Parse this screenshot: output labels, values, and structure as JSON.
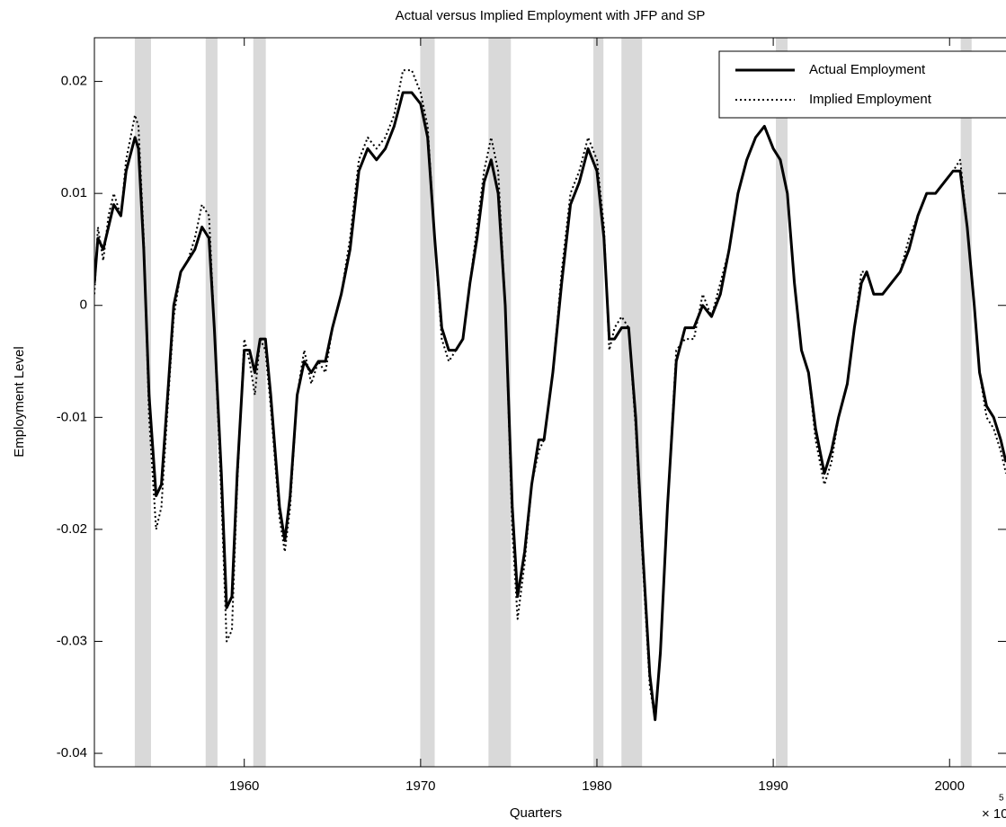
{
  "chart_data": {
    "type": "line",
    "title": "Actual versus Implied Employment with JFP and SP",
    "x_label": "Quarters",
    "y_label": "Employment Level",
    "x_multiplier": "× 10",
    "x_exponent": "5",
    "xlim": [
      1951.5,
      2003.2
    ],
    "ylim": [
      -0.0412,
      0.0239
    ],
    "xticks": [
      1960,
      1970,
      1980,
      1990,
      2000
    ],
    "yticks": [
      -0.04,
      -0.03,
      -0.02,
      -0.01,
      0,
      0.01,
      0.02
    ],
    "legend": "upper right",
    "recession_color": "#d9d9d9",
    "recessions": [
      [
        1953.79,
        1954.71
      ],
      [
        1957.81,
        1958.48
      ],
      [
        1960.51,
        1961.22
      ],
      [
        1969.98,
        1970.8
      ],
      [
        1973.85,
        1975.12
      ],
      [
        1979.8,
        1980.37
      ],
      [
        1981.39,
        1982.56
      ],
      [
        1990.15,
        1990.81
      ],
      [
        2000.63,
        2001.25
      ]
    ],
    "x": [
      1951.5,
      1951.7,
      1952.0,
      1952.3,
      1952.6,
      1953.0,
      1953.3,
      1953.8,
      1954.0,
      1954.3,
      1954.6,
      1955.0,
      1955.3,
      1955.7,
      1956.0,
      1956.4,
      1956.8,
      1957.2,
      1957.6,
      1958.0,
      1958.3,
      1958.7,
      1959.0,
      1959.3,
      1959.6,
      1960.0,
      1960.3,
      1960.6,
      1960.9,
      1961.2,
      1961.5,
      1962.0,
      1962.3,
      1962.6,
      1963.0,
      1963.4,
      1963.8,
      1964.2,
      1964.6,
      1965.0,
      1965.5,
      1966.0,
      1966.5,
      1967.0,
      1967.5,
      1968.0,
      1968.5,
      1969.0,
      1969.5,
      1970.0,
      1970.4,
      1970.8,
      1971.2,
      1971.6,
      1972.0,
      1972.4,
      1972.8,
      1973.2,
      1973.6,
      1974.0,
      1974.4,
      1974.8,
      1975.2,
      1975.5,
      1975.9,
      1976.3,
      1976.7,
      1977.0,
      1977.5,
      1978.0,
      1978.5,
      1979.0,
      1979.5,
      1980.0,
      1980.4,
      1980.7,
      1981.0,
      1981.4,
      1981.8,
      1982.2,
      1982.6,
      1983.0,
      1983.3,
      1983.6,
      1984.0,
      1984.5,
      1985.0,
      1985.5,
      1986.0,
      1986.5,
      1987.0,
      1987.5,
      1988.0,
      1988.5,
      1989.0,
      1989.5,
      1990.0,
      1990.4,
      1990.8,
      1991.2,
      1991.6,
      1992.0,
      1992.4,
      1992.9,
      1993.3,
      1993.7,
      1994.2,
      1994.6,
      1995.0,
      1995.3,
      1995.7,
      1996.2,
      1996.7,
      1997.2,
      1997.7,
      1998.2,
      1998.7,
      1999.2,
      1999.7,
      2000.2,
      2000.6,
      2001.0,
      2001.4,
      2001.7,
      2002.1,
      2002.5,
      2002.9,
      2003.2
    ],
    "series": [
      {
        "name": "Actual Employment",
        "color": "#000000",
        "style": "solid",
        "values": [
          0.002,
          0.006,
          0.005,
          0.007,
          0.009,
          0.008,
          0.012,
          0.015,
          0.014,
          0.005,
          -0.008,
          -0.017,
          -0.016,
          -0.007,
          0,
          0.003,
          0.004,
          0.005,
          0.007,
          0.006,
          -0.002,
          -0.015,
          -0.027,
          -0.026,
          -0.015,
          -0.004,
          -0.004,
          -0.006,
          -0.003,
          -0.003,
          -0.008,
          -0.018,
          -0.021,
          -0.017,
          -0.008,
          -0.005,
          -0.006,
          -0.005,
          -0.005,
          -0.002,
          0.001,
          0.005,
          0.012,
          0.014,
          0.013,
          0.014,
          0.016,
          0.019,
          0.019,
          0.018,
          0.015,
          0.006,
          -0.002,
          -0.004,
          -0.004,
          -0.003,
          0.002,
          0.006,
          0.011,
          0.013,
          0.01,
          0,
          -0.018,
          -0.026,
          -0.022,
          -0.016,
          -0.012,
          -0.012,
          -0.006,
          0.002,
          0.009,
          0.011,
          0.014,
          0.012,
          0.006,
          -0.003,
          -0.003,
          -0.002,
          -0.002,
          -0.01,
          -0.022,
          -0.033,
          -0.037,
          -0.031,
          -0.018,
          -0.005,
          -0.002,
          -0.002,
          0,
          -0.001,
          0.001,
          0.005,
          0.01,
          0.013,
          0.015,
          0.016,
          0.014,
          0.013,
          0.01,
          0.002,
          -0.004,
          -0.006,
          -0.011,
          -0.015,
          -0.013,
          -0.01,
          -0.007,
          -0.002,
          0.002,
          0.003,
          0.001,
          0.001,
          0.002,
          0.003,
          0.005,
          0.008,
          0.01,
          0.01,
          0.011,
          0.012,
          0.012,
          0.007,
          0,
          -0.006,
          -0.009,
          -0.01,
          -0.012,
          -0.014
        ]
      },
      {
        "name": "Implied Employment",
        "color": "#000000",
        "style": "dotted",
        "values": [
          0.001,
          0.007,
          0.004,
          0.008,
          0.01,
          0.008,
          0.013,
          0.017,
          0.016,
          0.006,
          -0.01,
          -0.02,
          -0.018,
          -0.008,
          -0.001,
          0.003,
          0.004,
          0.006,
          0.009,
          0.008,
          -0.002,
          -0.017,
          -0.03,
          -0.029,
          -0.016,
          -0.003,
          -0.005,
          -0.008,
          -0.003,
          -0.004,
          -0.009,
          -0.019,
          -0.022,
          -0.018,
          -0.008,
          -0.004,
          -0.007,
          -0.005,
          -0.006,
          -0.002,
          0.001,
          0.006,
          0.013,
          0.015,
          0.014,
          0.015,
          0.017,
          0.021,
          0.021,
          0.019,
          0.016,
          0.006,
          -0.003,
          -0.005,
          -0.004,
          -0.003,
          0.002,
          0.007,
          0.012,
          0.015,
          0.012,
          0,
          -0.02,
          -0.028,
          -0.023,
          -0.016,
          -0.013,
          -0.012,
          -0.006,
          0.003,
          0.01,
          0.012,
          0.015,
          0.013,
          0.007,
          -0.004,
          -0.002,
          -0.001,
          -0.002,
          -0.011,
          -0.023,
          -0.034,
          -0.037,
          -0.031,
          -0.018,
          -0.004,
          -0.003,
          -0.003,
          0.001,
          -0.001,
          0.002,
          0.005,
          0.01,
          0.013,
          0.015,
          0.016,
          0.014,
          0.013,
          0.01,
          0.002,
          -0.004,
          -0.006,
          -0.012,
          -0.016,
          -0.014,
          -0.01,
          -0.007,
          -0.002,
          0.003,
          0.003,
          0.001,
          0.001,
          0.002,
          0.003,
          0.006,
          0.008,
          0.01,
          0.01,
          0.011,
          0.012,
          0.013,
          0.007,
          0,
          -0.006,
          -0.01,
          -0.011,
          -0.013,
          -0.015
        ]
      }
    ]
  }
}
